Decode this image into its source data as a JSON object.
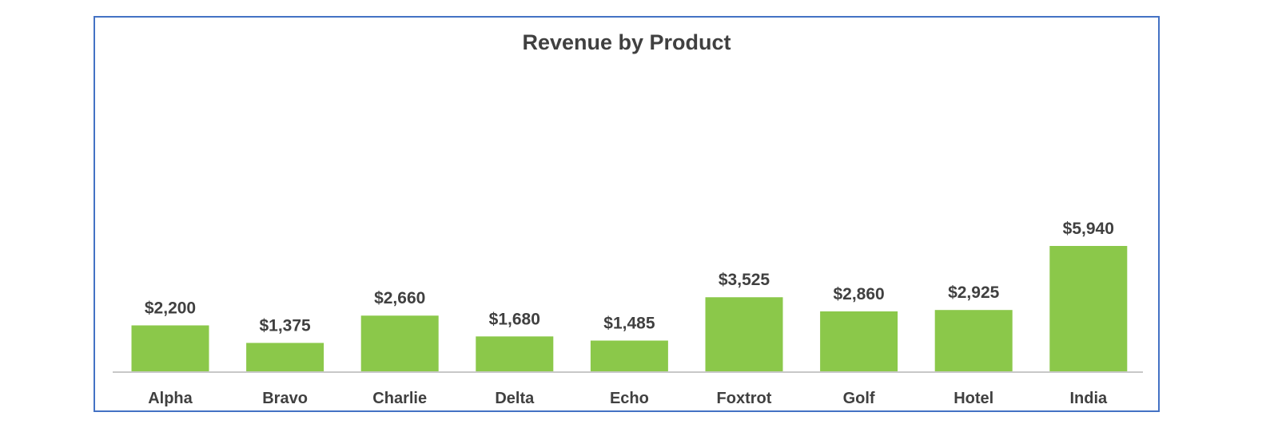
{
  "chart_data": {
    "type": "bar",
    "title": "Revenue by Product",
    "categories": [
      "Alpha",
      "Bravo",
      "Charlie",
      "Delta",
      "Echo",
      "Foxtrot",
      "Golf",
      "Hotel",
      "India"
    ],
    "values": [
      2200,
      1375,
      2660,
      1680,
      1485,
      3525,
      2860,
      2925,
      5940
    ],
    "data_labels": [
      "$2,200",
      "$1,375",
      "$2,660",
      "$1,680",
      "$1,485",
      "$3,525",
      "$2,860",
      "$2,925",
      "$5,940"
    ],
    "xlabel": "",
    "ylabel": "",
    "ylim": [
      0,
      6000
    ],
    "grid": false,
    "y_axis_visible": false,
    "legend": "none",
    "colors": {
      "bar": "#8BC84A",
      "text": "#404040",
      "axis": "#C8C8C8",
      "border": "#4472C4"
    }
  }
}
